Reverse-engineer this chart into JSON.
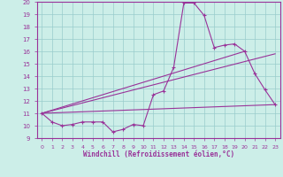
{
  "xlabel": "Windchill (Refroidissement éolien,°C)",
  "xlim": [
    -0.5,
    23.5
  ],
  "ylim": [
    9,
    20
  ],
  "yticks": [
    9,
    10,
    11,
    12,
    13,
    14,
    15,
    16,
    17,
    18,
    19,
    20
  ],
  "xticks": [
    0,
    1,
    2,
    3,
    4,
    5,
    6,
    7,
    8,
    9,
    10,
    11,
    12,
    13,
    14,
    15,
    16,
    17,
    18,
    19,
    20,
    21,
    22,
    23
  ],
  "bg_color": "#cceee8",
  "line_color": "#993399",
  "grid_color": "#99cccc",
  "series1_x": [
    0,
    1,
    2,
    3,
    4,
    5,
    6,
    7,
    8,
    9,
    10,
    11,
    12,
    13,
    14,
    15,
    16,
    17,
    18,
    19,
    20,
    21,
    22,
    23
  ],
  "series1_y": [
    11.0,
    10.3,
    10.0,
    10.1,
    10.3,
    10.3,
    10.3,
    9.5,
    9.7,
    10.1,
    10.0,
    12.5,
    12.8,
    14.7,
    19.9,
    19.9,
    18.9,
    16.3,
    16.5,
    16.6,
    16.0,
    14.2,
    12.9,
    11.7
  ],
  "line1_x": [
    0,
    23
  ],
  "line1_y": [
    11.0,
    11.7
  ],
  "line2_x": [
    0,
    23
  ],
  "line2_y": [
    11.0,
    15.8
  ],
  "line3_x": [
    0,
    20
  ],
  "line3_y": [
    11.0,
    16.0
  ]
}
